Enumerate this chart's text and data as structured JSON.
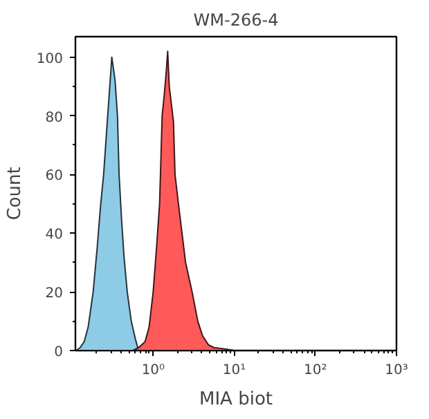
{
  "chart_data": {
    "type": "area",
    "title": "WM-266-4",
    "xlabel": "MIA biot",
    "ylabel": "Count",
    "log": "x",
    "grid": false,
    "xlim": [
      0.11,
      1000
    ],
    "ylim": [
      0,
      107
    ],
    "xticks": [
      {
        "value": 1,
        "label": "10⁰"
      },
      {
        "value": 10,
        "label": "10¹"
      },
      {
        "value": 100,
        "label": "10²"
      },
      {
        "value": 1000,
        "label": "10³"
      }
    ],
    "yticks": [
      0,
      20,
      40,
      60,
      80,
      100
    ],
    "series": [
      {
        "color": "#8ecbe6",
        "x": [
          0.112,
          0.126,
          0.141,
          0.158,
          0.182,
          0.204,
          0.224,
          0.245,
          0.275,
          0.295,
          0.309,
          0.324,
          0.339,
          0.363,
          0.38,
          0.407,
          0.437,
          0.479,
          0.537,
          0.603,
          0.661
        ],
        "values": [
          0,
          1,
          3,
          8,
          20,
          35,
          49,
          60,
          80,
          92,
          100,
          96,
          92,
          80,
          60,
          45,
          32,
          20,
          10,
          4,
          0
        ]
      },
      {
        "color": "#ff5a5a",
        "x": [
          0.562,
          0.661,
          0.794,
          0.891,
          1.0,
          1.1,
          1.2,
          1.23,
          1.29,
          1.38,
          1.45,
          1.51,
          1.58,
          1.66,
          1.78,
          1.86,
          2.09,
          2.51,
          3.02,
          3.55,
          4.07,
          4.79,
          5.62,
          7.94,
          10
        ],
        "values": [
          0,
          1,
          3,
          8,
          20,
          35,
          50,
          60,
          80,
          88,
          95,
          102,
          90,
          85,
          78,
          60,
          48,
          30,
          20,
          10,
          5,
          2,
          1,
          0.5,
          0
        ]
      }
    ]
  }
}
